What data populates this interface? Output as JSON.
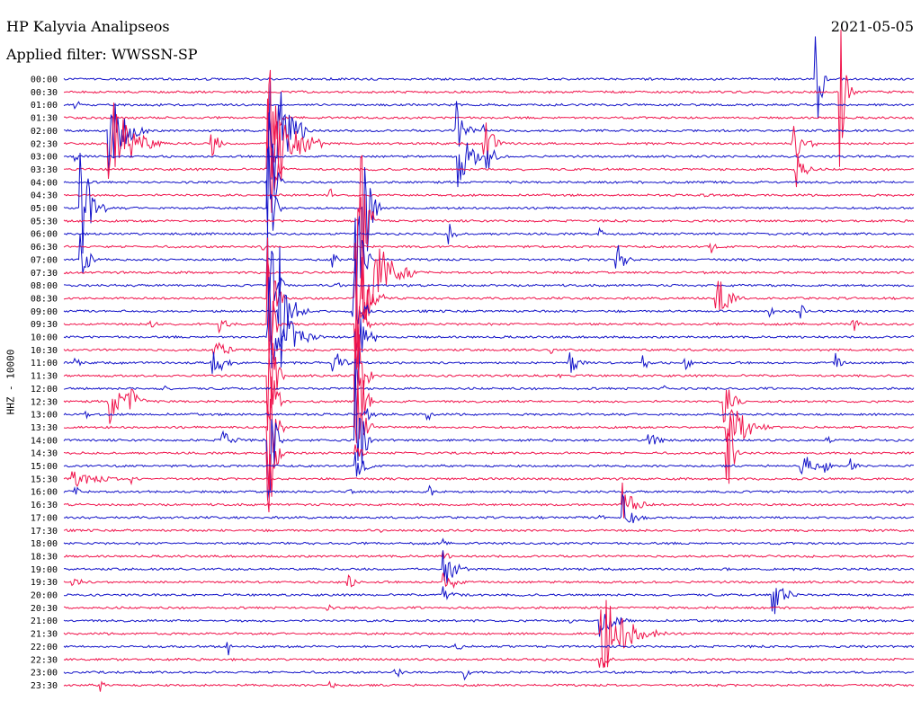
{
  "header": {
    "station": "HP Kalyvia Analipseos",
    "date": "2021-05-05",
    "filter": "Applied filter: WWSSN-SP"
  },
  "channel_label": "HHZ - 10000",
  "colors": {
    "blue_trace": "#1212c8",
    "red_trace": "#f0144c",
    "background": "#ffffff"
  },
  "chart_data": {
    "type": "helicorder",
    "xlabel": "",
    "ylabel": "HHZ - 10000",
    "row_minutes": 30,
    "grid": false,
    "tick_labels": [
      "00:00",
      "00:30",
      "01:00",
      "01:30",
      "02:00",
      "02:30",
      "03:00",
      "03:30",
      "04:00",
      "04:30",
      "05:00",
      "05:30",
      "06:00",
      "06:30",
      "07:00",
      "07:30",
      "08:00",
      "08:30",
      "09:00",
      "09:30",
      "10:00",
      "10:30",
      "11:00",
      "11:30",
      "12:00",
      "12:30",
      "13:00",
      "13:30",
      "14:00",
      "14:30",
      "15:00",
      "15:30",
      "16:00",
      "16:30",
      "17:00",
      "17:30",
      "18:00",
      "18:30",
      "19:00",
      "19:30",
      "20:00",
      "20:30",
      "21:00",
      "21:30",
      "22:00",
      "22:30",
      "23:00",
      "23:30"
    ],
    "row_colors": [
      "blue",
      "red"
    ],
    "events": [
      {
        "row": 0,
        "minute": 26.5,
        "amp": 95,
        "dur": 0.5
      },
      {
        "row": 1,
        "minute": 27.4,
        "amp": 95,
        "dur": 0.5
      },
      {
        "row": 2,
        "minute": 0.4,
        "amp": 8,
        "dur": 0.6
      },
      {
        "row": 3,
        "minute": 7.3,
        "amp": 95,
        "dur": 0.5
      },
      {
        "row": 4,
        "minute": 1.6,
        "amp": 62,
        "dur": 1.4
      },
      {
        "row": 4,
        "minute": 7.3,
        "amp": 95,
        "dur": 1.5
      },
      {
        "row": 4,
        "minute": 13.8,
        "amp": 40,
        "dur": 0.8
      },
      {
        "row": 4,
        "minute": 14.7,
        "amp": 18,
        "dur": 0.4
      },
      {
        "row": 5,
        "minute": 1.6,
        "amp": 62,
        "dur": 2.0
      },
      {
        "row": 5,
        "minute": 5.2,
        "amp": 22,
        "dur": 0.6
      },
      {
        "row": 5,
        "minute": 7.2,
        "amp": 95,
        "dur": 2.0
      },
      {
        "row": 5,
        "minute": 14.8,
        "amp": 40,
        "dur": 0.8
      },
      {
        "row": 5,
        "minute": 25.7,
        "amp": 22,
        "dur": 1.2
      },
      {
        "row": 6,
        "minute": 0.4,
        "amp": 6,
        "dur": 0.5
      },
      {
        "row": 6,
        "minute": 13.9,
        "amp": 35,
        "dur": 1.4
      },
      {
        "row": 6,
        "minute": 14.9,
        "amp": 20,
        "dur": 0.8
      },
      {
        "row": 7,
        "minute": 7.2,
        "amp": 95,
        "dur": 0.6
      },
      {
        "row": 7,
        "minute": 25.8,
        "amp": 30,
        "dur": 0.8
      },
      {
        "row": 7,
        "minute": 15.1,
        "amp": 3,
        "dur": 0.3
      },
      {
        "row": 8,
        "minute": 7.2,
        "amp": 95,
        "dur": 0.6
      },
      {
        "row": 9,
        "minute": 9.4,
        "amp": 8,
        "dur": 0.4
      },
      {
        "row": 9,
        "minute": 22.6,
        "amp": 8,
        "dur": 0.3
      },
      {
        "row": 10,
        "minute": 0.6,
        "amp": 75,
        "dur": 1.0
      },
      {
        "row": 10,
        "minute": 7.2,
        "amp": 95,
        "dur": 0.5
      },
      {
        "row": 10,
        "minute": 10.6,
        "amp": 95,
        "dur": 0.6
      },
      {
        "row": 11,
        "minute": 10.5,
        "amp": 95,
        "dur": 0.6
      },
      {
        "row": 12,
        "minute": 13.6,
        "amp": 14,
        "dur": 0.5
      },
      {
        "row": 12,
        "minute": 18.9,
        "amp": 8,
        "dur": 0.4
      },
      {
        "row": 13,
        "minute": 7.0,
        "amp": 6,
        "dur": 0.4
      },
      {
        "row": 13,
        "minute": 22.8,
        "amp": 12,
        "dur": 0.4
      },
      {
        "row": 14,
        "minute": 0.6,
        "amp": 60,
        "dur": 0.5
      },
      {
        "row": 14,
        "minute": 9.5,
        "amp": 12,
        "dur": 0.5
      },
      {
        "row": 14,
        "minute": 10.3,
        "amp": 95,
        "dur": 0.6
      },
      {
        "row": 14,
        "minute": 19.5,
        "amp": 20,
        "dur": 0.8
      },
      {
        "row": 15,
        "minute": 10.4,
        "amp": 95,
        "dur": 2.0
      },
      {
        "row": 16,
        "minute": 7.2,
        "amp": 95,
        "dur": 0.6
      },
      {
        "row": 16,
        "minute": 9.6,
        "amp": 6,
        "dur": 0.4
      },
      {
        "row": 17,
        "minute": 7.2,
        "amp": 95,
        "dur": 0.6
      },
      {
        "row": 17,
        "minute": 10.3,
        "amp": 95,
        "dur": 1.0
      },
      {
        "row": 17,
        "minute": 23.0,
        "amp": 40,
        "dur": 1.0
      },
      {
        "row": 18,
        "minute": 7.6,
        "amp": 95,
        "dur": 0.6
      },
      {
        "row": 18,
        "minute": 8.0,
        "amp": 30,
        "dur": 0.8
      },
      {
        "row": 18,
        "minute": 10.2,
        "amp": 95,
        "dur": 0.6
      },
      {
        "row": 18,
        "minute": 24.9,
        "amp": 8,
        "dur": 0.4
      },
      {
        "row": 18,
        "minute": 26.0,
        "amp": 10,
        "dur": 0.4
      },
      {
        "row": 19,
        "minute": 3.0,
        "amp": 10,
        "dur": 0.6
      },
      {
        "row": 19,
        "minute": 5.5,
        "amp": 10,
        "dur": 0.8
      },
      {
        "row": 19,
        "minute": 7.2,
        "amp": 95,
        "dur": 0.5
      },
      {
        "row": 19,
        "minute": 10.3,
        "amp": 95,
        "dur": 0.5
      },
      {
        "row": 19,
        "minute": 27.8,
        "amp": 12,
        "dur": 0.5
      },
      {
        "row": 20,
        "minute": 7.2,
        "amp": 95,
        "dur": 0.6
      },
      {
        "row": 20,
        "minute": 7.8,
        "amp": 30,
        "dur": 1.5
      },
      {
        "row": 20,
        "minute": 10.3,
        "amp": 95,
        "dur": 0.6
      },
      {
        "row": 20,
        "minute": 11.0,
        "amp": 8,
        "dur": 0.3
      },
      {
        "row": 21,
        "minute": 5.3,
        "amp": 20,
        "dur": 1.0
      },
      {
        "row": 21,
        "minute": 17.2,
        "amp": 6,
        "dur": 0.3
      },
      {
        "row": 22,
        "minute": 0.4,
        "amp": 8,
        "dur": 0.5
      },
      {
        "row": 22,
        "minute": 5.2,
        "amp": 22,
        "dur": 1.2
      },
      {
        "row": 22,
        "minute": 9.5,
        "amp": 20,
        "dur": 0.8
      },
      {
        "row": 22,
        "minute": 17.8,
        "amp": 20,
        "dur": 0.8
      },
      {
        "row": 22,
        "minute": 20.4,
        "amp": 12,
        "dur": 0.6
      },
      {
        "row": 22,
        "minute": 21.9,
        "amp": 10,
        "dur": 0.6
      },
      {
        "row": 22,
        "minute": 27.2,
        "amp": 14,
        "dur": 0.6
      },
      {
        "row": 23,
        "minute": 7.2,
        "amp": 95,
        "dur": 0.6
      },
      {
        "row": 23,
        "minute": 10.3,
        "amp": 95,
        "dur": 0.6
      },
      {
        "row": 23,
        "minute": 17.5,
        "amp": 8,
        "dur": 0.4
      },
      {
        "row": 24,
        "minute": 3.5,
        "amp": 8,
        "dur": 0.4
      },
      {
        "row": 24,
        "minute": 21.1,
        "amp": 10,
        "dur": 0.4
      },
      {
        "row": 25,
        "minute": 1.6,
        "amp": 30,
        "dur": 1.0
      },
      {
        "row": 25,
        "minute": 2.2,
        "amp": 28,
        "dur": 1.0
      },
      {
        "row": 25,
        "minute": 7.2,
        "amp": 95,
        "dur": 0.6
      },
      {
        "row": 25,
        "minute": 10.3,
        "amp": 95,
        "dur": 0.6
      },
      {
        "row": 25,
        "minute": 23.3,
        "amp": 30,
        "dur": 0.8
      },
      {
        "row": 26,
        "minute": 0.8,
        "amp": 6,
        "dur": 0.4
      },
      {
        "row": 26,
        "minute": 10.6,
        "amp": 10,
        "dur": 0.8
      },
      {
        "row": 26,
        "minute": 12.8,
        "amp": 10,
        "dur": 0.5
      },
      {
        "row": 27,
        "minute": 7.2,
        "amp": 95,
        "dur": 0.6
      },
      {
        "row": 27,
        "minute": 10.3,
        "amp": 95,
        "dur": 0.6
      },
      {
        "row": 27,
        "minute": 23.4,
        "amp": 40,
        "dur": 1.6
      },
      {
        "row": 28,
        "minute": 5.6,
        "amp": 14,
        "dur": 1.0
      },
      {
        "row": 28,
        "minute": 7.2,
        "amp": 95,
        "dur": 0.6
      },
      {
        "row": 28,
        "minute": 10.3,
        "amp": 95,
        "dur": 0.6
      },
      {
        "row": 28,
        "minute": 20.6,
        "amp": 14,
        "dur": 1.0
      },
      {
        "row": 28,
        "minute": 26.9,
        "amp": 8,
        "dur": 0.4
      },
      {
        "row": 29,
        "minute": 7.2,
        "amp": 95,
        "dur": 0.6
      },
      {
        "row": 29,
        "minute": 10.3,
        "amp": 12,
        "dur": 0.6
      },
      {
        "row": 29,
        "minute": 23.4,
        "amp": 95,
        "dur": 0.5
      },
      {
        "row": 30,
        "minute": 10.3,
        "amp": 20,
        "dur": 0.8
      },
      {
        "row": 30,
        "minute": 26.0,
        "amp": 20,
        "dur": 1.0
      },
      {
        "row": 30,
        "minute": 26.8,
        "amp": 10,
        "dur": 0.6
      },
      {
        "row": 30,
        "minute": 27.7,
        "amp": 12,
        "dur": 0.6
      },
      {
        "row": 31,
        "minute": 0.3,
        "amp": 10,
        "dur": 3.0
      },
      {
        "row": 31,
        "minute": 2.4,
        "amp": 10,
        "dur": 0.5
      },
      {
        "row": 32,
        "minute": 0.4,
        "amp": 6,
        "dur": 1.0
      },
      {
        "row": 32,
        "minute": 10.0,
        "amp": 6,
        "dur": 0.5
      },
      {
        "row": 32,
        "minute": 12.9,
        "amp": 8,
        "dur": 0.5
      },
      {
        "row": 33,
        "minute": 19.7,
        "amp": 28,
        "dur": 1.2
      },
      {
        "row": 34,
        "minute": 19.7,
        "amp": 28,
        "dur": 1.0
      },
      {
        "row": 34,
        "minute": 18.9,
        "amp": 6,
        "dur": 0.4
      },
      {
        "row": 35,
        "minute": 11.2,
        "amp": 5,
        "dur": 0.4
      },
      {
        "row": 36,
        "minute": 13.4,
        "amp": 5,
        "dur": 0.4
      },
      {
        "row": 37,
        "minute": 13.4,
        "amp": 8,
        "dur": 0.5
      },
      {
        "row": 38,
        "minute": 13.4,
        "amp": 30,
        "dur": 1.0
      },
      {
        "row": 38,
        "minute": 23.3,
        "amp": 6,
        "dur": 0.4
      },
      {
        "row": 39,
        "minute": 0.3,
        "amp": 10,
        "dur": 0.8
      },
      {
        "row": 39,
        "minute": 10.0,
        "amp": 14,
        "dur": 0.6
      },
      {
        "row": 39,
        "minute": 13.4,
        "amp": 20,
        "dur": 1.0
      },
      {
        "row": 40,
        "minute": 13.4,
        "amp": 14,
        "dur": 1.2
      },
      {
        "row": 40,
        "minute": 25.0,
        "amp": 30,
        "dur": 1.0
      },
      {
        "row": 41,
        "minute": 9.3,
        "amp": 6,
        "dur": 0.4
      },
      {
        "row": 42,
        "minute": 17.8,
        "amp": 6,
        "dur": 0.4
      },
      {
        "row": 42,
        "minute": 18.9,
        "amp": 18,
        "dur": 1.6
      },
      {
        "row": 43,
        "minute": 18.9,
        "amp": 55,
        "dur": 2.4
      },
      {
        "row": 44,
        "minute": 5.8,
        "amp": 10,
        "dur": 0.5
      },
      {
        "row": 44,
        "minute": 13.8,
        "amp": 10,
        "dur": 0.5
      },
      {
        "row": 45,
        "minute": 18.9,
        "amp": 20,
        "dur": 0.6
      },
      {
        "row": 46,
        "minute": 11.7,
        "amp": 10,
        "dur": 0.5
      },
      {
        "row": 46,
        "minute": 14.1,
        "amp": 10,
        "dur": 0.5
      },
      {
        "row": 47,
        "minute": 1.3,
        "amp": 8,
        "dur": 0.5
      },
      {
        "row": 47,
        "minute": 9.4,
        "amp": 8,
        "dur": 0.5
      }
    ]
  }
}
